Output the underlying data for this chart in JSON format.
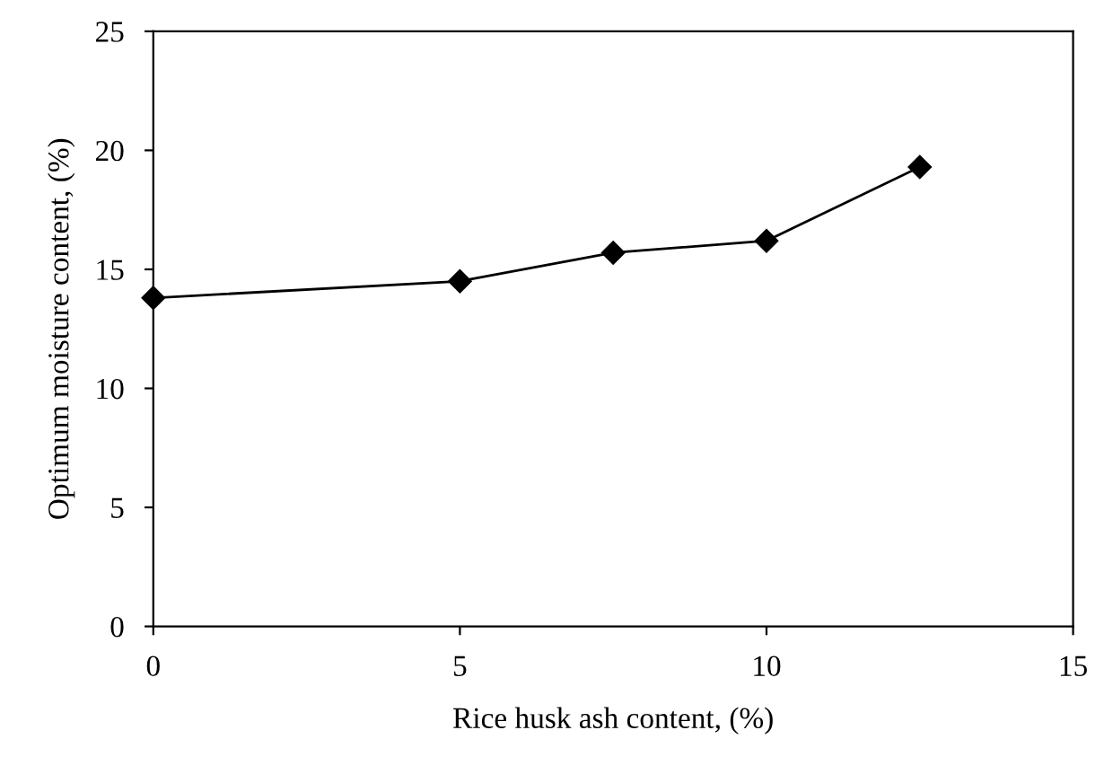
{
  "chart_data": {
    "type": "line",
    "xlabel": "Rice husk ash content, (%)",
    "ylabel": "Optimum moisture content, (%)",
    "x": [
      0,
      5,
      7.5,
      10,
      12.5
    ],
    "series": [
      {
        "color": "#000000",
        "values": [
          13.8,
          14.5,
          15.7,
          16.2,
          19.3
        ]
      }
    ],
    "xlim": [
      0,
      15
    ],
    "xticks": [
      0,
      5,
      10,
      15
    ],
    "ylim": [
      0,
      25
    ],
    "yticks": [
      0,
      5,
      10,
      15,
      20,
      25
    ],
    "marker": "diamond",
    "line_style": "solid",
    "grid": false,
    "legend": false
  }
}
